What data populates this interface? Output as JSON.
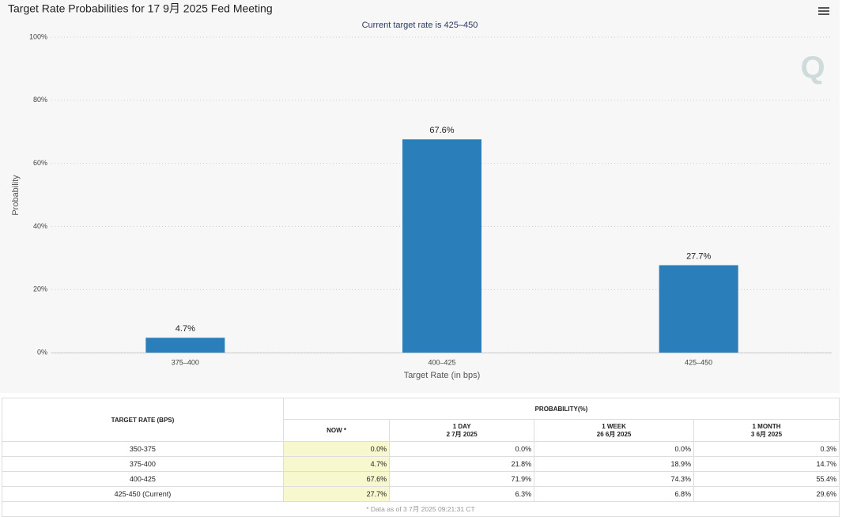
{
  "chart_data": {
    "type": "bar",
    "title": "Target Rate Probabilities for 17 9月 2025 Fed Meeting",
    "subtitle": "Current target rate is 425–450",
    "y_label": "Probability",
    "x_label": "Target Rate (in bps)",
    "categories": [
      "375–400",
      "400–425",
      "425–450"
    ],
    "values": [
      4.7,
      67.6,
      27.7
    ],
    "value_labels": [
      "4.7%",
      "67.6%",
      "27.7%"
    ],
    "color": "#2a7fba",
    "ylim": [
      0,
      100
    ],
    "yticks": [
      {
        "value": 0,
        "label": "0%"
      },
      {
        "value": 20,
        "label": "20%"
      },
      {
        "value": 40,
        "label": "40%"
      },
      {
        "value": 60,
        "label": "60%"
      },
      {
        "value": 80,
        "label": "80%"
      },
      {
        "value": 100,
        "label": "100%"
      }
    ],
    "grid": true
  },
  "table": {
    "header": {
      "rate": "TARGET RATE (BPS)",
      "probability": "PROBABILITY(%)",
      "columns": [
        {
          "label": "NOW *"
        },
        {
          "label": "1 DAY",
          "date": "2 7月 2025"
        },
        {
          "label": "1 WEEK",
          "date": "26 6月 2025"
        },
        {
          "label": "1 MONTH",
          "date": "3 6月 2025"
        }
      ]
    },
    "rows": [
      [
        "350-375",
        "0.0%",
        "0.0%",
        "0.0%",
        "0.3%"
      ],
      [
        "375-400",
        "4.7%",
        "21.8%",
        "18.9%",
        "14.7%"
      ],
      [
        "400-425",
        "67.6%",
        "71.9%",
        "74.3%",
        "55.4%"
      ],
      [
        "425-450 (Current)",
        "27.7%",
        "6.3%",
        "6.8%",
        "29.6%"
      ]
    ],
    "footnote": "* Data as of 3 7月 2025 09:21:31 CT"
  }
}
